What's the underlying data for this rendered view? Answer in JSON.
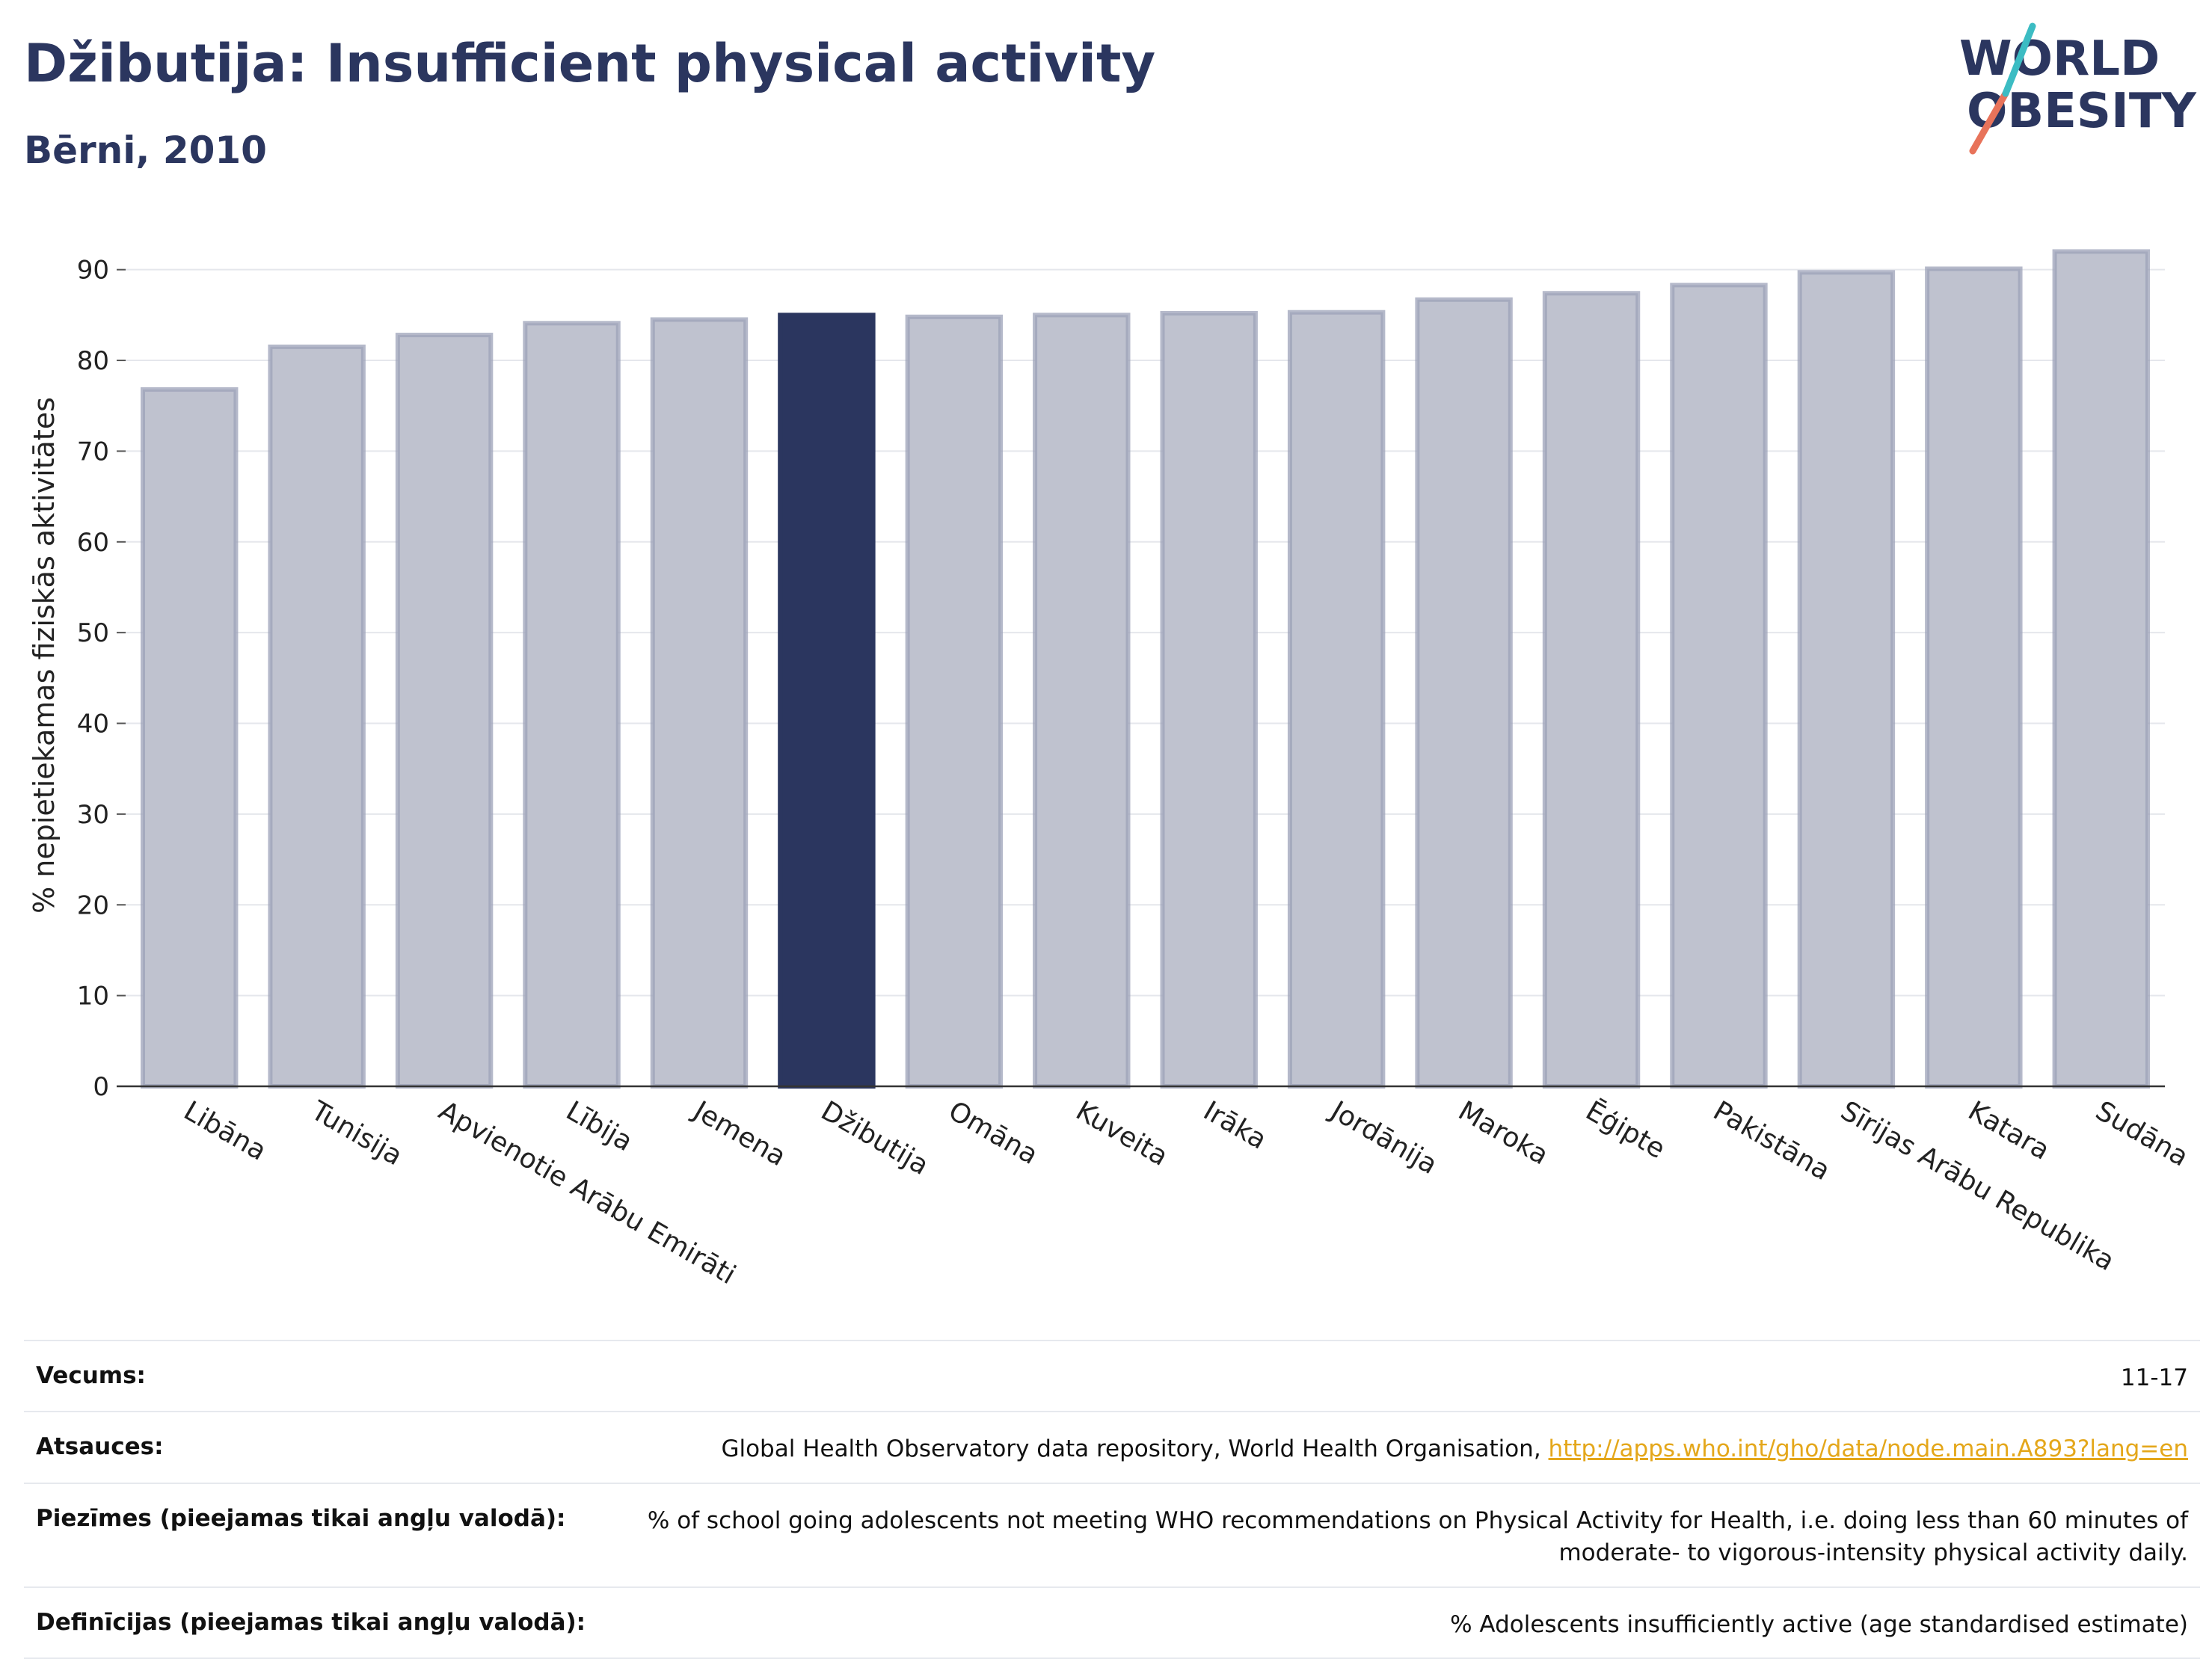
{
  "header": {
    "title": "Džibutija: Insufficient physical activity",
    "subtitle": "Bērni, 2010"
  },
  "logo": {
    "line1": "WORLD",
    "line2": "OBESITY"
  },
  "chart_data": {
    "type": "bar",
    "title": "Džibutija: Insufficient physical activity",
    "subtitle": "Bērni, 2010",
    "ylabel": "% nepietiekamas fiziskās aktivitātes",
    "xlabel": "",
    "ylim": [
      0,
      95
    ],
    "yticks": [
      0,
      10,
      20,
      30,
      40,
      50,
      60,
      70,
      80,
      90
    ],
    "grid": true,
    "highlight": "Džibutija",
    "colors": {
      "bar": "#bfc2cf",
      "bar_border": "#9ca1b8",
      "highlight": "#2b365f"
    },
    "categories": [
      "Libāna",
      "Tunisija",
      "Apvienotie Arābu Emirāti",
      "Lībija",
      "Jemena",
      "Džibutija",
      "Omāna",
      "Kuveita",
      "Irāka",
      "Jordānija",
      "Maroka",
      "Ēģipte",
      "Pakistāna",
      "Sīrijas Arābu Republika",
      "Katara",
      "Sudāna"
    ],
    "values": [
      76.8,
      81.5,
      82.8,
      84.1,
      84.5,
      85.0,
      84.8,
      85.0,
      85.2,
      85.3,
      86.7,
      87.4,
      88.3,
      89.7,
      90.1,
      92.0
    ]
  },
  "info_table": [
    {
      "key": "Vecums:",
      "value": "11-17"
    },
    {
      "key": "Atsauces:",
      "value": "Global Health Observatory data repository, World Health Organisation, ",
      "link": "http://apps.who.int/gho/data/node.main.A893?lang=en"
    },
    {
      "key": "Piezīmes (pieejamas tikai angļu valodā):",
      "value": "% of school going adolescents not meeting WHO recommendations on Physical Activity for Health, i.e. doing less than 60 minutes of moderate- to vigorous-intensity physical activity daily."
    },
    {
      "key": "Definīcijas (pieejamas tikai angļu valodā):",
      "value": "% Adolescents insufficiently active (age standardised estimate)"
    }
  ]
}
